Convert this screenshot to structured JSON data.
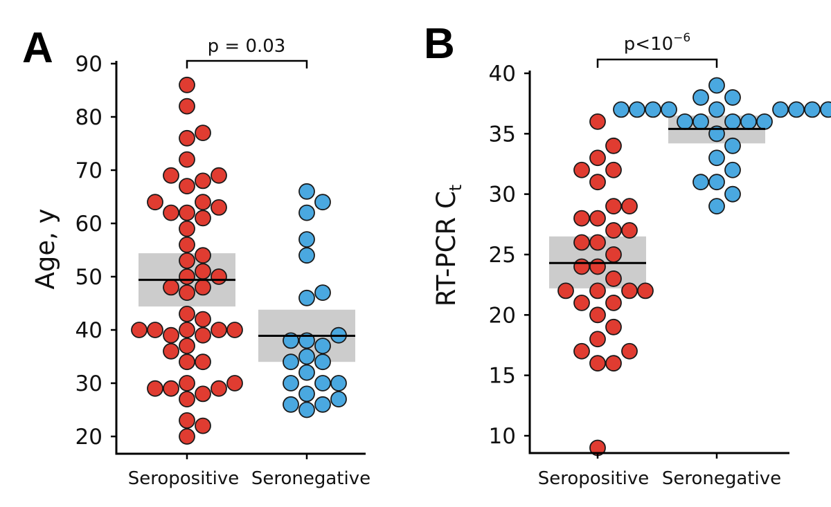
{
  "chart_data": [
    {
      "type": "scatter",
      "panel_label": "A",
      "ylabel": "Age, y",
      "ylim": [
        20,
        90
      ],
      "yticks": [
        20,
        30,
        40,
        50,
        60,
        70,
        80,
        90
      ],
      "categories": [
        "Seropositive",
        "Seronegative"
      ],
      "comparison": "p = 0.03",
      "series": [
        {
          "name": "Seropositive",
          "color": "#e03c31",
          "mean": 49.4,
          "ci": [
            44.4,
            54.4
          ],
          "values": [
            86,
            82,
            77,
            76,
            72,
            69,
            69,
            68,
            67,
            64,
            64,
            63,
            62,
            62,
            61,
            59,
            56,
            54,
            53,
            51,
            50,
            50,
            48,
            48,
            47,
            43,
            42,
            40,
            40,
            40,
            40,
            40,
            39,
            39,
            37,
            36,
            34,
            34,
            30,
            30,
            29,
            29,
            29,
            28,
            27,
            23,
            22,
            20
          ]
        },
        {
          "name": "Seronegative",
          "color": "#4aa8e0",
          "mean": 38.9,
          "ci": [
            34,
            43.8
          ],
          "values": [
            66,
            64,
            62,
            57,
            54,
            47,
            46,
            39,
            38,
            38,
            37,
            35,
            34,
            34,
            32,
            30,
            30,
            30,
            28,
            27,
            26,
            26,
            25
          ]
        }
      ]
    },
    {
      "type": "scatter",
      "panel_label": "B",
      "ylabel": "RT-PCR C",
      "ylabel_sub": "t",
      "ylim": [
        10,
        40
      ],
      "yticks": [
        10,
        15,
        20,
        25,
        30,
        35,
        40
      ],
      "categories": [
        "Seropositive",
        "Seronegative"
      ],
      "comparison": "p<10",
      "comparison_sup": "−6",
      "series": [
        {
          "name": "Seropositive",
          "color": "#e03c31",
          "mean": 24.3,
          "ci": [
            22.2,
            26.5
          ],
          "values": [
            36,
            34,
            33,
            32,
            32,
            31,
            29,
            29,
            28,
            28,
            27,
            27,
            26,
            26,
            25,
            24,
            24,
            23,
            22,
            22,
            22,
            22,
            21,
            21,
            20,
            19,
            18,
            17,
            17,
            16,
            16,
            9
          ]
        },
        {
          "name": "Seronegative",
          "color": "#4aa8e0",
          "mean": 35.4,
          "ci": [
            34.2,
            36.5
          ],
          "values": [
            39,
            38,
            38,
            37,
            37,
            37,
            37,
            37,
            37,
            37,
            37,
            37,
            36,
            36,
            36,
            36,
            36,
            35,
            34,
            33,
            32,
            31,
            31,
            30,
            29
          ]
        }
      ]
    }
  ]
}
